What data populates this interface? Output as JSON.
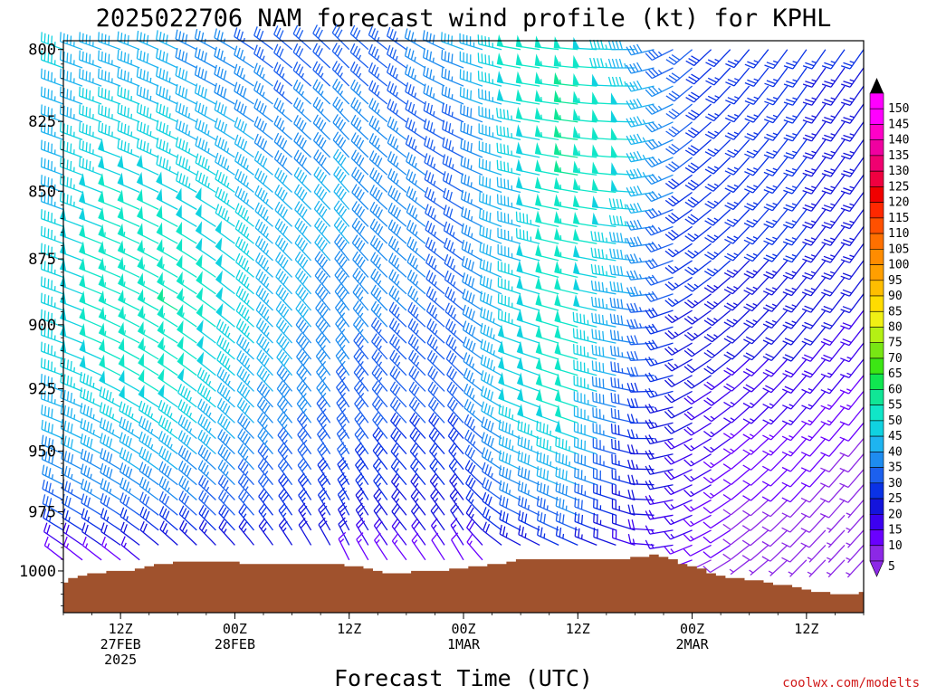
{
  "credit": "coolwx.com/modelts",
  "chart_data": {
    "type": "wind_barb_time_height",
    "title": "2025022706 NAM forecast wind profile (kt) for KPHL",
    "xlabel": "Forecast Time (UTC)",
    "units": "kt",
    "y_ticks": [
      "800",
      "825",
      "850",
      "875",
      "900",
      "925",
      "950",
      "975",
      "1000"
    ],
    "y_range": [
      797,
      1018
    ],
    "x_ticks": [
      {
        "hour": 6,
        "lines": [
          "12Z",
          "27FEB",
          "2025"
        ]
      },
      {
        "hour": 18,
        "lines": [
          "00Z",
          "28FEB"
        ]
      },
      {
        "hour": 30,
        "lines": [
          "12Z"
        ]
      },
      {
        "hour": 42,
        "lines": [
          "00Z",
          "1MAR"
        ]
      },
      {
        "hour": 54,
        "lines": [
          "12Z"
        ]
      },
      {
        "hour": 66,
        "lines": [
          "00Z",
          "2MAR"
        ]
      },
      {
        "hour": 78,
        "lines": [
          "12Z"
        ]
      }
    ],
    "x_range": [
      0,
      84
    ],
    "colorbar_levels": [
      5,
      10,
      15,
      20,
      25,
      30,
      35,
      40,
      45,
      50,
      55,
      60,
      65,
      70,
      75,
      80,
      85,
      90,
      95,
      100,
      105,
      110,
      115,
      120,
      125,
      130,
      135,
      140,
      145,
      150
    ],
    "colorbar_colors": [
      "#8c28e6",
      "#6a00ff",
      "#3c00f0",
      "#1414dc",
      "#0a32e6",
      "#1c60ee",
      "#1e8cf0",
      "#1eb4f0",
      "#10d2e0",
      "#10e6c8",
      "#10e696",
      "#10e650",
      "#3ce614",
      "#78e614",
      "#b4f014",
      "#f0f014",
      "#ffdc00",
      "#ffbe00",
      "#ff9f00",
      "#ff8c00",
      "#ff7000",
      "#ff5000",
      "#ff2800",
      "#f00000",
      "#f00040",
      "#f00070",
      "#f000a0",
      "#ff00c8",
      "#ff00ff",
      "#ff00ff"
    ],
    "surface_pressure": {
      "hours": [
        0,
        1,
        2,
        3,
        4,
        5,
        6,
        7,
        8,
        9,
        10,
        11,
        12,
        13,
        14,
        15,
        16,
        17,
        18,
        19,
        20,
        21,
        22,
        23,
        24,
        25,
        26,
        27,
        28,
        29,
        30,
        31,
        32,
        33,
        34,
        35,
        36,
        37,
        38,
        39,
        40,
        41,
        42,
        43,
        44,
        45,
        46,
        47,
        48,
        49,
        50,
        51,
        52,
        53,
        54,
        55,
        56,
        57,
        58,
        59,
        60,
        61,
        62,
        63,
        64,
        65,
        66,
        67,
        68,
        69,
        70,
        71,
        72,
        73,
        74,
        75,
        76,
        77,
        78,
        79,
        80,
        81,
        82,
        83,
        84
      ],
      "values": [
        1005,
        1003,
        1002,
        1001,
        1001,
        1000,
        1000,
        1000,
        999,
        998,
        997,
        997,
        996,
        996,
        996,
        996,
        996,
        996,
        996,
        997,
        997,
        997,
        997,
        997,
        997,
        997,
        997,
        997,
        997,
        997,
        998,
        998,
        999,
        1000,
        1001,
        1001,
        1001,
        1000,
        1000,
        1000,
        1000,
        999,
        999,
        998,
        998,
        997,
        997,
        996,
        995,
        995,
        995,
        995,
        995,
        995,
        995,
        995,
        995,
        995,
        995,
        995,
        994,
        994,
        993,
        994,
        995,
        997,
        998,
        999,
        1001,
        1002,
        1003,
        1003,
        1004,
        1004,
        1005,
        1006,
        1006,
        1007,
        1008,
        1009,
        1009,
        1010,
        1010,
        1010,
        1009
      ]
    },
    "wind_profile": {
      "levels_hpa": [
        800,
        810,
        820,
        830,
        840,
        850,
        860,
        870,
        880,
        890,
        900,
        910,
        920,
        930,
        940,
        950,
        960,
        970,
        980,
        990,
        1000
      ],
      "key_hours": [
        0,
        6,
        12,
        18,
        24,
        30,
        36,
        42,
        48,
        54,
        60,
        66,
        72,
        78,
        84
      ],
      "speed_kt": [
        [
          45,
          42,
          40,
          36,
          30,
          30,
          34,
          40,
          50,
          52,
          42,
          30,
          25,
          25,
          25
        ],
        [
          45,
          44,
          42,
          38,
          33,
          33,
          34,
          38,
          50,
          55,
          45,
          30,
          25,
          25,
          24
        ],
        [
          44,
          46,
          44,
          40,
          35,
          36,
          34,
          36,
          48,
          56,
          48,
          30,
          26,
          25,
          24
        ],
        [
          44,
          47,
          46,
          42,
          37,
          38,
          35,
          34,
          47,
          56,
          50,
          30,
          26,
          25,
          24
        ],
        [
          44,
          48,
          47,
          44,
          38,
          40,
          36,
          33,
          46,
          55,
          50,
          30,
          26,
          25,
          24
        ],
        [
          44,
          50,
          48,
          46,
          40,
          40,
          37,
          32,
          45,
          55,
          48,
          29,
          26,
          25,
          24
        ],
        [
          45,
          52,
          50,
          47,
          41,
          40,
          38,
          32,
          44,
          54,
          46,
          28,
          26,
          25,
          24
        ],
        [
          46,
          53,
          52,
          48,
          42,
          40,
          38,
          33,
          44,
          54,
          44,
          27,
          25,
          25,
          23
        ],
        [
          47,
          54,
          54,
          48,
          42,
          39,
          37,
          34,
          45,
          53,
          42,
          26,
          24,
          24,
          22
        ],
        [
          47,
          55,
          55,
          48,
          42,
          38,
          36,
          34,
          46,
          52,
          40,
          25,
          23,
          23,
          20
        ],
        [
          47,
          54,
          55,
          48,
          42,
          37,
          35,
          34,
          47,
          52,
          38,
          24,
          22,
          22,
          18
        ],
        [
          46,
          52,
          54,
          47,
          41,
          36,
          34,
          33,
          48,
          52,
          36,
          23,
          20,
          20,
          16
        ],
        [
          45,
          50,
          52,
          46,
          40,
          35,
          33,
          32,
          48,
          52,
          34,
          22,
          18,
          18,
          14
        ],
        [
          44,
          48,
          50,
          44,
          38,
          34,
          32,
          31,
          48,
          52,
          32,
          21,
          16,
          16,
          12
        ],
        [
          42,
          45,
          47,
          42,
          36,
          33,
          30,
          30,
          46,
          50,
          30,
          20,
          14,
          14,
          10
        ],
        [
          40,
          42,
          44,
          40,
          34,
          32,
          28,
          28,
          43,
          47,
          28,
          19,
          12,
          12,
          9
        ],
        [
          37,
          39,
          40,
          37,
          32,
          30,
          26,
          26,
          40,
          44,
          26,
          18,
          11,
          11,
          8
        ],
        [
          34,
          36,
          36,
          34,
          30,
          28,
          24,
          24,
          36,
          40,
          24,
          17,
          10,
          10,
          7
        ],
        [
          28,
          30,
          30,
          30,
          27,
          25,
          22,
          22,
          30,
          34,
          22,
          16,
          9,
          9,
          6
        ],
        [
          18,
          20,
          22,
          24,
          22,
          20,
          18,
          16,
          22,
          26,
          18,
          14,
          8,
          8,
          5
        ],
        [
          8,
          10,
          12,
          14,
          12,
          10,
          9,
          8,
          12,
          14,
          10,
          8,
          6,
          6,
          5
        ]
      ],
      "direction_deg": [
        [
          290,
          290,
          295,
          300,
          310,
          315,
          305,
          290,
          280,
          275,
          270,
          230,
          220,
          215,
          215
        ],
        [
          290,
          290,
          295,
          300,
          310,
          315,
          305,
          292,
          280,
          276,
          270,
          230,
          220,
          215,
          215
        ],
        [
          290,
          290,
          295,
          300,
          310,
          316,
          306,
          294,
          281,
          277,
          271,
          231,
          221,
          216,
          215
        ],
        [
          290,
          291,
          296,
          302,
          311,
          317,
          307,
          296,
          282,
          278,
          272,
          232,
          222,
          216,
          215
        ],
        [
          290,
          291,
          296,
          303,
          312,
          318,
          308,
          298,
          283,
          279,
          273,
          233,
          222,
          217,
          215
        ],
        [
          290,
          292,
          297,
          304,
          313,
          319,
          309,
          300,
          284,
          280,
          274,
          234,
          223,
          217,
          216
        ],
        [
          290,
          292,
          298,
          305,
          314,
          320,
          310,
          302,
          285,
          281,
          275,
          235,
          224,
          218,
          216
        ],
        [
          290,
          293,
          299,
          306,
          315,
          321,
          311,
          304,
          286,
          282,
          276,
          236,
          224,
          218,
          216
        ],
        [
          290,
          293,
          300,
          307,
          316,
          322,
          312,
          306,
          287,
          283,
          277,
          237,
          225,
          219,
          217
        ],
        [
          290,
          294,
          301,
          308,
          317,
          323,
          313,
          308,
          288,
          284,
          278,
          238,
          226,
          219,
          217
        ],
        [
          290,
          295,
          302,
          309,
          318,
          324,
          314,
          310,
          289,
          285,
          279,
          239,
          226,
          220,
          218
        ],
        [
          290,
          296,
          303,
          310,
          319,
          325,
          315,
          312,
          290,
          286,
          280,
          240,
          227,
          220,
          218
        ],
        [
          290,
          297,
          304,
          311,
          320,
          326,
          316,
          314,
          291,
          287,
          281,
          241,
          228,
          221,
          219
        ],
        [
          290,
          298,
          305,
          312,
          321,
          327,
          317,
          316,
          292,
          288,
          282,
          242,
          228,
          221,
          219
        ],
        [
          292,
          299,
          306,
          313,
          322,
          328,
          318,
          318,
          293,
          289,
          283,
          243,
          229,
          222,
          220
        ],
        [
          294,
          300,
          307,
          314,
          323,
          329,
          319,
          320,
          294,
          290,
          284,
          244,
          230,
          222,
          220
        ],
        [
          296,
          301,
          308,
          315,
          324,
          330,
          320,
          322,
          295,
          291,
          285,
          245,
          230,
          223,
          221
        ],
        [
          298,
          302,
          309,
          316,
          325,
          331,
          321,
          324,
          296,
          292,
          286,
          246,
          231,
          223,
          221
        ],
        [
          300,
          303,
          310,
          317,
          326,
          332,
          322,
          326,
          297,
          293,
          287,
          247,
          232,
          224,
          222
        ],
        [
          305,
          305,
          312,
          318,
          327,
          333,
          323,
          328,
          298,
          294,
          288,
          248,
          232,
          224,
          222
        ],
        [
          310,
          310,
          315,
          320,
          328,
          334,
          324,
          330,
          300,
          295,
          290,
          250,
          233,
          225,
          223
        ]
      ]
    }
  }
}
